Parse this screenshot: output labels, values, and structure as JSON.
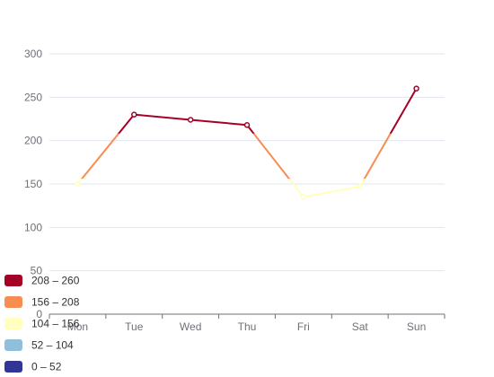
{
  "chart_data": {
    "type": "line",
    "categories": [
      "Mon",
      "Tue",
      "Wed",
      "Thu",
      "Fri",
      "Sat",
      "Sun"
    ],
    "series": [
      {
        "values": [
          150,
          230,
          224,
          218,
          135,
          147,
          260
        ]
      }
    ],
    "ylim": [
      0,
      300
    ],
    "yticks": [
      0,
      50,
      100,
      150,
      200,
      250,
      300
    ],
    "grid": true,
    "legend_position": "bottom-left",
    "visual_map": {
      "pieces": [
        {
          "label": "208 – 260",
          "min": 208,
          "max": 260,
          "color": "#a50026"
        },
        {
          "label": "156 – 208",
          "min": 156,
          "max": 208,
          "color": "#f88d52"
        },
        {
          "label": "104 – 156",
          "min": 104,
          "max": 156,
          "color": "#ffffbf"
        },
        {
          "label": "52 – 104",
          "min": 52,
          "max": 104,
          "color": "#91bfdb"
        },
        {
          "label": "0 – 52",
          "min": 0,
          "max": 52,
          "color": "#313695"
        }
      ]
    },
    "colors": {
      "grid": "#e0e6f1",
      "axis": "#6e7079"
    }
  }
}
